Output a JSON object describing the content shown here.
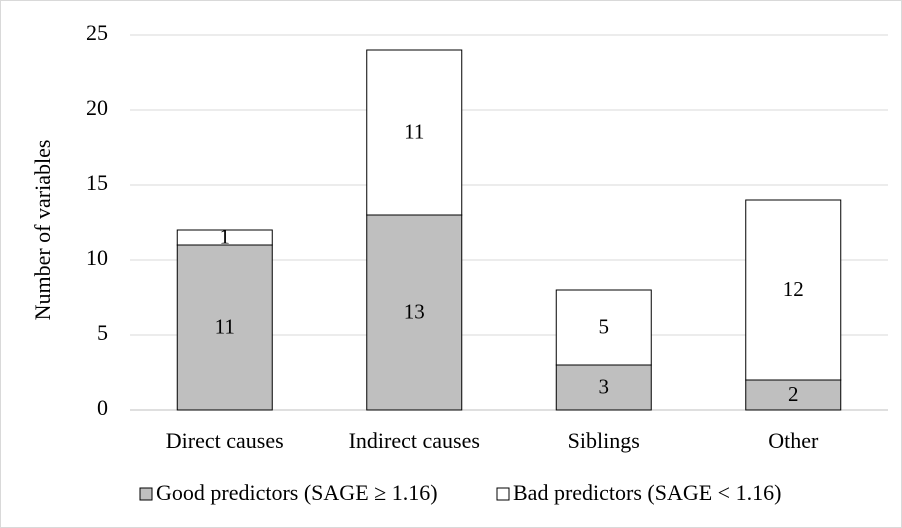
{
  "chart_data": {
    "type": "stacked_bar",
    "y_label": "Number of variables",
    "categories": [
      "Direct causes",
      "Indirect causes",
      "Siblings",
      "Other"
    ],
    "series": [
      {
        "name": "Good predictors (SAGE ≥ 1.16)",
        "color": "#bfbfbf",
        "values": [
          11,
          13,
          3,
          2
        ]
      },
      {
        "name": "Bad predictors (SAGE < 1.16)",
        "color": "#ffffff",
        "values": [
          1,
          11,
          5,
          12
        ]
      }
    ],
    "ylim": [
      0,
      25
    ],
    "yticks": [
      0,
      5,
      10,
      15,
      20,
      25
    ],
    "grid": true,
    "legend": "bottom"
  }
}
